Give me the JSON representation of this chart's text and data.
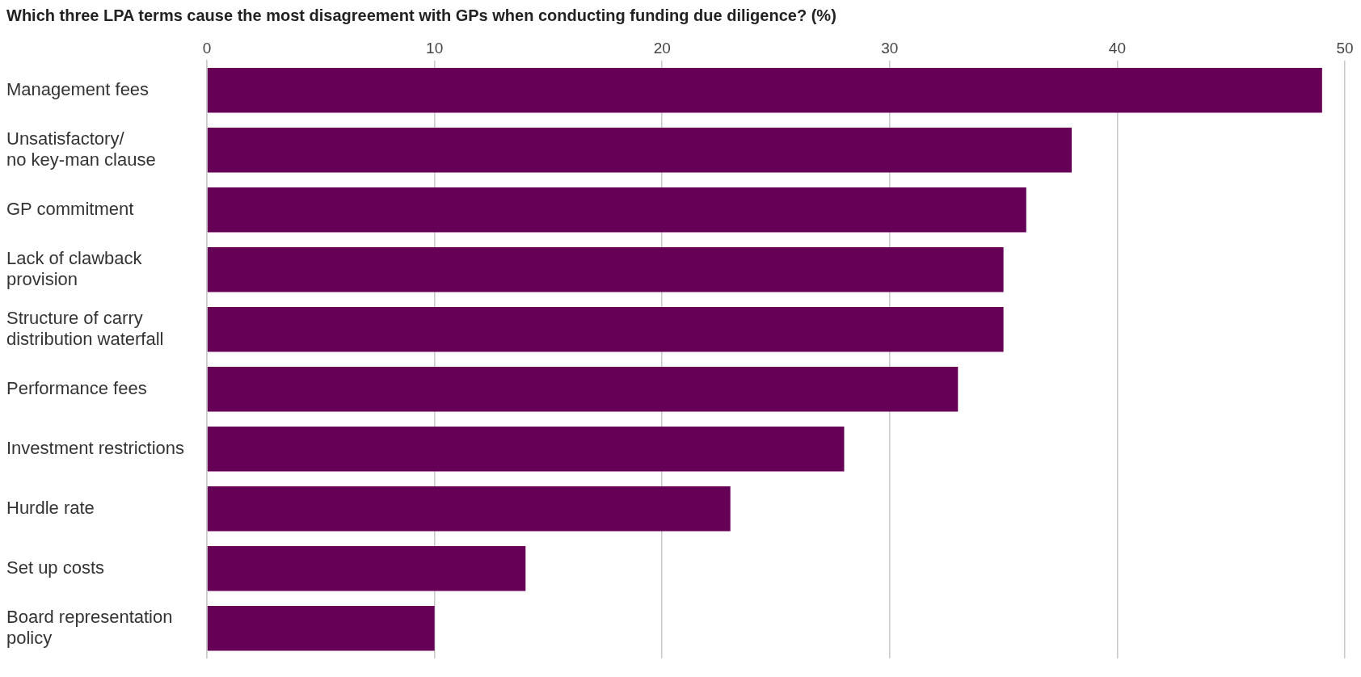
{
  "chart_data": {
    "type": "bar",
    "orientation": "horizontal",
    "title": "Which three LPA terms cause the most disagreement with GPs when conducting funding due diligence? (%)",
    "categories": [
      "Management fees",
      "Unsatisfactory/\nno key-man clause",
      "GP commitment",
      "Lack of clawback\nprovision",
      "Structure of carry\ndistribution waterfall",
      "Performance fees",
      "Investment restrictions",
      "Hurdle rate",
      "Set up costs",
      "Board representation\npolicy"
    ],
    "values": [
      49,
      38,
      36,
      35,
      35,
      33,
      28,
      23,
      14,
      10
    ],
    "color": "#660057",
    "xlim": [
      0,
      50
    ],
    "xticks": [
      0,
      10,
      20,
      30,
      40,
      50
    ],
    "grid": "x",
    "legend": false
  }
}
